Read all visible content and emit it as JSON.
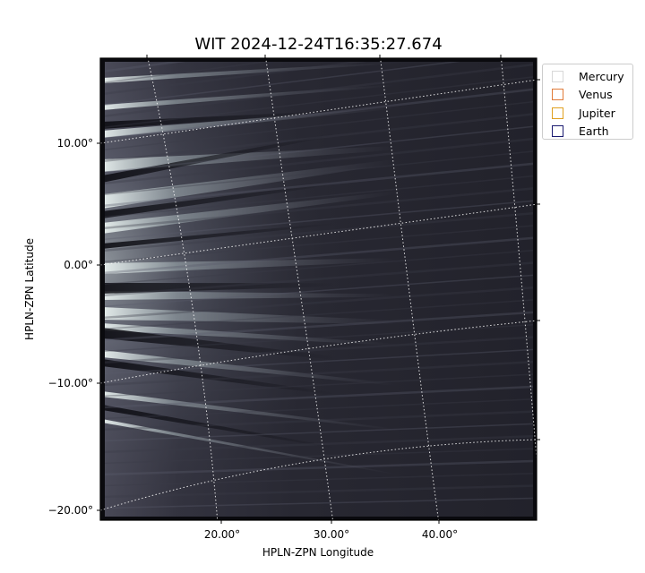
{
  "title": "WIT 2024-12-24T16:35:27.674",
  "axes": {
    "xlabel": "HPLN-ZPN Longitude",
    "ylabel": "HPLN-ZPN Latitude",
    "x_ticks": [
      "20.00°",
      "30.00°",
      "40.00°"
    ],
    "y_ticks": [
      "10.00°",
      "0.00°",
      "−10.00°",
      "−20.00°"
    ]
  },
  "legend": {
    "items": [
      {
        "label": "Mercury",
        "color": "#d8d8d8"
      },
      {
        "label": "Venus",
        "color": "#e07b39"
      },
      {
        "label": "Jupiter",
        "color": "#e0a020"
      },
      {
        "label": "Earth",
        "color": "#1a1a70"
      }
    ]
  },
  "image": {
    "colormap": "bone",
    "background_color": "#22222c"
  }
}
